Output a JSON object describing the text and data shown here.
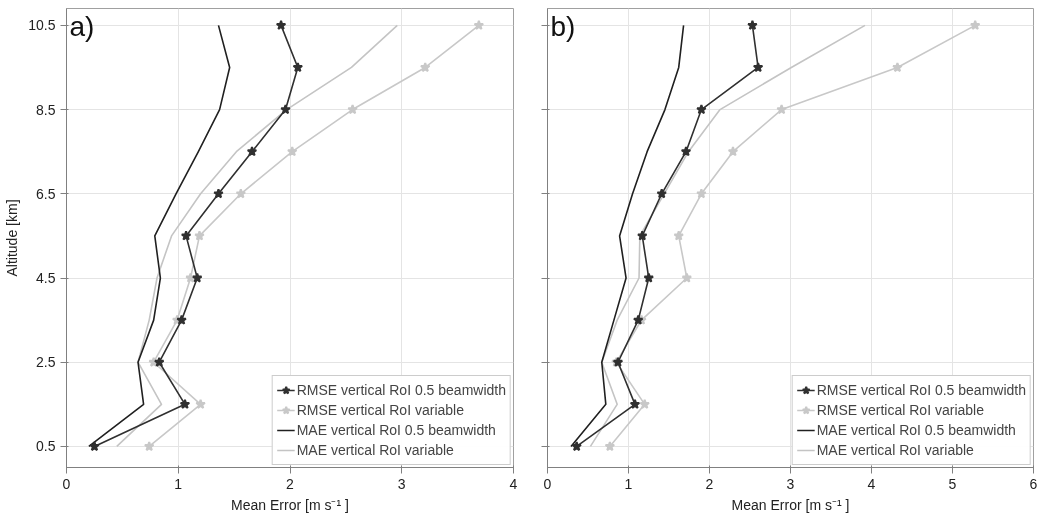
{
  "chart_data": [
    {
      "type": "line",
      "xlabel": "Mean Error [m s⁻¹ ]",
      "ylabel": "Altitude [km]",
      "annotations": [
        "a)"
      ],
      "xlim": [
        0,
        4
      ],
      "xticks": [
        0,
        1,
        2,
        3,
        4
      ],
      "ylim": [
        0,
        10.9
      ],
      "yticks": [
        0.5,
        2.5,
        4.5,
        6.5,
        8.5,
        10.5
      ],
      "grid": true,
      "legend": "bottom right",
      "series": [
        {
          "name": "RMSE vertical RoI 0.5 beamwidth",
          "color": "#303030",
          "marker": "star",
          "x": [
            0.25,
            1.06,
            0.83,
            1.03,
            1.17,
            1.07,
            1.36,
            1.66,
            1.96,
            2.07,
            1.92
          ],
          "values": [
            0.5,
            1.5,
            2.5,
            3.5,
            4.5,
            5.5,
            6.5,
            7.5,
            8.5,
            9.5,
            10.5
          ]
        },
        {
          "name": "RMSE vertical RoI variable",
          "color": "#c8c8c8",
          "marker": "star",
          "x": [
            0.74,
            1.2,
            0.78,
            0.99,
            1.11,
            1.19,
            1.56,
            2.02,
            2.56,
            3.21,
            3.69
          ],
          "values": [
            0.5,
            1.5,
            2.5,
            3.5,
            4.5,
            5.5,
            6.5,
            7.5,
            8.5,
            9.5,
            10.5
          ]
        },
        {
          "name": "MAE vertical RoI 0.5 beamwidth",
          "color": "#202020",
          "marker": "none",
          "x": [
            0.2,
            0.69,
            0.64,
            0.78,
            0.84,
            0.79,
            0.98,
            1.18,
            1.37,
            1.46,
            1.36
          ],
          "values": [
            0.5,
            1.5,
            2.5,
            3.5,
            4.5,
            5.5,
            6.5,
            7.5,
            8.5,
            9.5,
            10.5
          ]
        },
        {
          "name": "MAE vertical RoI variable",
          "color": "#c4c4c4",
          "marker": "none",
          "x": [
            0.45,
            0.85,
            0.64,
            0.74,
            0.81,
            0.94,
            1.2,
            1.52,
            1.97,
            2.55,
            2.96
          ],
          "values": [
            0.5,
            1.5,
            2.5,
            3.5,
            4.5,
            5.5,
            6.5,
            7.5,
            8.5,
            9.5,
            10.5
          ]
        }
      ]
    },
    {
      "type": "line",
      "xlabel": "Mean Error [m s⁻¹ ]",
      "annotations": [
        "b)"
      ],
      "xlim": [
        0,
        6
      ],
      "xticks": [
        0,
        1,
        2,
        3,
        4,
        5,
        6
      ],
      "ylim": [
        0,
        10.9
      ],
      "yticks": [
        0.5,
        2.5,
        4.5,
        6.5,
        8.5,
        10.5
      ],
      "tick_labels": "x",
      "grid": true,
      "legend": "bottom right",
      "series": [
        {
          "name": "RMSE vertical RoI 0.5 beamwidth",
          "color": "#303030",
          "marker": "star",
          "x": [
            0.36,
            1.08,
            0.87,
            1.12,
            1.25,
            1.17,
            1.41,
            1.71,
            1.9,
            2.6,
            2.53
          ],
          "values": [
            0.5,
            1.5,
            2.5,
            3.5,
            4.5,
            5.5,
            6.5,
            7.5,
            8.5,
            9.5,
            10.5
          ]
        },
        {
          "name": "RMSE vertical RoI variable",
          "color": "#c8c8c8",
          "marker": "star",
          "x": [
            0.77,
            1.2,
            0.85,
            1.16,
            1.72,
            1.62,
            1.9,
            2.29,
            2.89,
            4.32,
            5.28
          ],
          "values": [
            0.5,
            1.5,
            2.5,
            3.5,
            4.5,
            5.5,
            6.5,
            7.5,
            8.5,
            9.5,
            10.5
          ]
        },
        {
          "name": "MAE vertical RoI 0.5 beamwidth",
          "color": "#202020",
          "marker": "none",
          "x": [
            0.29,
            0.72,
            0.67,
            0.82,
            0.97,
            0.89,
            1.05,
            1.23,
            1.45,
            1.62,
            1.68
          ],
          "values": [
            0.5,
            1.5,
            2.5,
            3.5,
            4.5,
            5.5,
            6.5,
            7.5,
            8.5,
            9.5,
            10.5
          ]
        },
        {
          "name": "MAE vertical RoI variable",
          "color": "#c4c4c4",
          "marker": "none",
          "x": [
            0.53,
            0.86,
            0.67,
            0.86,
            1.13,
            1.14,
            1.44,
            1.74,
            2.13,
            3.01,
            3.92
          ],
          "values": [
            0.5,
            1.5,
            2.5,
            3.5,
            4.5,
            5.5,
            6.5,
            7.5,
            8.5,
            9.5,
            10.5
          ]
        }
      ]
    }
  ]
}
